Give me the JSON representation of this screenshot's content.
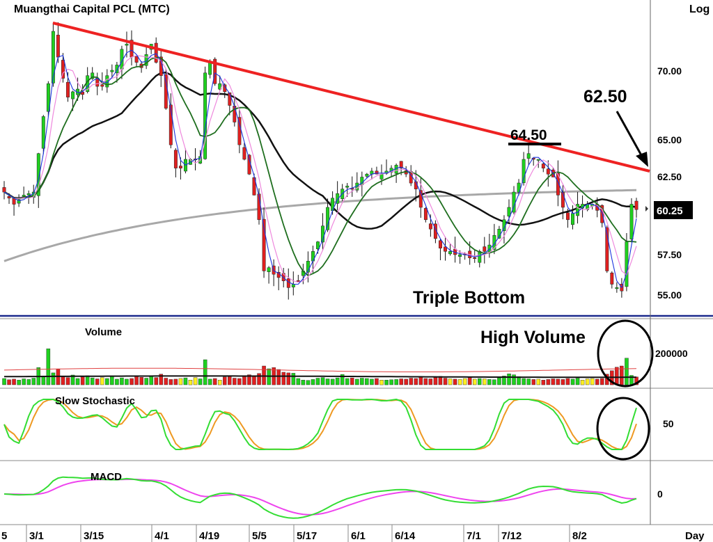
{
  "chart_data": {
    "type": "candlestick",
    "title": "Muangthai  Capital  PCL  (MTC)",
    "scale_label": "Log",
    "x_unit_label": "Day",
    "x_tick_labels": [
      "5",
      "3/1",
      "3/15",
      "4/1",
      "4/19",
      "5/5",
      "5/17",
      "6/1",
      "6/14",
      "7/1",
      "7/12",
      "8/2"
    ],
    "price_axis": {
      "tick_labels": [
        "70.00",
        "65.00",
        "62.50",
        "57.50",
        "55.00"
      ],
      "scale": "log"
    },
    "last_price": "60.25",
    "annotations": {
      "resistance_level": "64.50",
      "target_level": "62.50",
      "pattern": "Triple Bottom",
      "volume_note": "High Volume"
    },
    "candles_close": [
      61.4,
      61.0,
      60.6,
      60.9,
      61.2,
      61.3,
      61.4,
      64.0,
      66.6,
      69.0,
      73.0,
      71.0,
      69.4,
      68.0,
      68.4,
      68.6,
      68.2,
      69.6,
      69.8,
      68.8,
      68.8,
      69.6,
      70.0,
      70.4,
      71.6,
      72.0,
      71.0,
      70.6,
      70.2,
      71.2,
      72.0,
      70.6,
      69.6,
      67.2,
      64.6,
      63.0,
      63.0,
      63.6,
      63.6,
      63.6,
      63.8,
      69.8,
      70.6,
      69.0,
      69.0,
      68.4,
      67.4,
      66.2,
      64.6,
      63.6,
      62.6,
      61.2,
      59.6,
      56.4,
      56.6,
      56.2,
      56.0,
      55.8,
      55.4,
      55.6,
      55.8,
      56.4,
      57.0,
      57.6,
      58.2,
      59.2,
      60.4,
      61.0,
      61.3,
      61.6,
      61.8,
      61.6,
      62.0,
      62.4,
      62.6,
      62.8,
      62.6,
      62.6,
      62.8,
      63.0,
      63.2,
      63.0,
      62.6,
      62.0,
      61.6,
      60.4,
      59.6,
      59.0,
      58.4,
      57.8,
      57.6,
      57.6,
      57.4,
      57.4,
      57.4,
      57.2,
      57.2,
      57.6,
      57.6,
      58.0,
      58.6,
      59.0,
      59.6,
      60.4,
      61.4,
      62.0,
      63.6,
      64.0,
      63.6,
      63.6,
      63.0,
      62.6,
      62.4,
      61.2,
      60.4,
      59.6,
      60.0,
      60.6,
      60.6,
      60.6,
      60.6,
      60.2,
      59.4,
      56.4,
      55.6,
      55.4,
      55.2,
      58.2,
      60.6,
      60.25
    ],
    "moving_averages": [
      "5-day (blue)",
      "10-day (pink)",
      "21-day (green)",
      "50-day (black)",
      "200-day (grey)"
    ],
    "volume": {
      "label": "Volume",
      "tick_labels": [
        "200000"
      ],
      "values": [
        40000,
        32000,
        36000,
        30000,
        38000,
        34000,
        42000,
        110000,
        56000,
        230000,
        76000,
        100000,
        54000,
        46000,
        62000,
        40000,
        50000,
        58000,
        44000,
        38000,
        46000,
        40000,
        52000,
        36000,
        44000,
        36000,
        40000,
        56000,
        48000,
        42000,
        54000,
        46000,
        68000,
        42000,
        34000,
        36000,
        40000,
        44000,
        30000,
        46000,
        38000,
        160000,
        36000,
        40000,
        30000,
        50000,
        52000,
        42000,
        40000,
        56000,
        64000,
        58000,
        72000,
        120000,
        102000,
        110000,
        98000,
        80000,
        76000,
        74000,
        40000,
        30000,
        28000,
        34000,
        42000,
        46000,
        38000,
        36000,
        44000,
        66000,
        40000,
        44000,
        36000,
        42000,
        40000,
        36000,
        40000,
        30000,
        30000,
        32000,
        34000,
        38000,
        36000,
        42000,
        40000,
        48000,
        40000,
        38000,
        46000,
        54000,
        42000,
        38000,
        36000,
        34000,
        40000,
        52000,
        36000,
        40000,
        38000,
        34000,
        32000,
        44000,
        56000,
        70000,
        64000,
        52000,
        40000,
        38000,
        34000,
        36000,
        30000,
        34000,
        38000,
        36000,
        34000,
        40000,
        36000,
        42000,
        30000,
        38000,
        40000,
        36000,
        40000,
        68000,
        90000,
        112000,
        120000,
        170000,
        60000,
        50000
      ],
      "moving_averages": [
        "red",
        "black"
      ]
    },
    "slow_stochastic": {
      "label": "Slow  Stochastic",
      "tick_labels": [
        "50"
      ],
      "lines": [
        "%K (green)",
        "%D (orange)"
      ]
    },
    "macd": {
      "label": "MACD",
      "tick_labels": [
        "0"
      ],
      "lines": [
        "MACD (green)",
        "Signal (magenta)"
      ]
    },
    "colors": {
      "up": "#1fd01f",
      "down": "#e02020",
      "neutral_volume": "#ffee22",
      "trendline": "#ee2222",
      "ma5": "#1a33dd",
      "ma10": "#ee88dd",
      "ma21": "#1e6e1e",
      "ma50": "#111111",
      "ma200": "#a8a8a8",
      "stoch_k": "#33dd33",
      "stoch_d": "#ee9922",
      "macd": "#33dd33",
      "signal": "#ee44ee",
      "separator": "#1c2a8c",
      "price_box": "#000000"
    }
  }
}
